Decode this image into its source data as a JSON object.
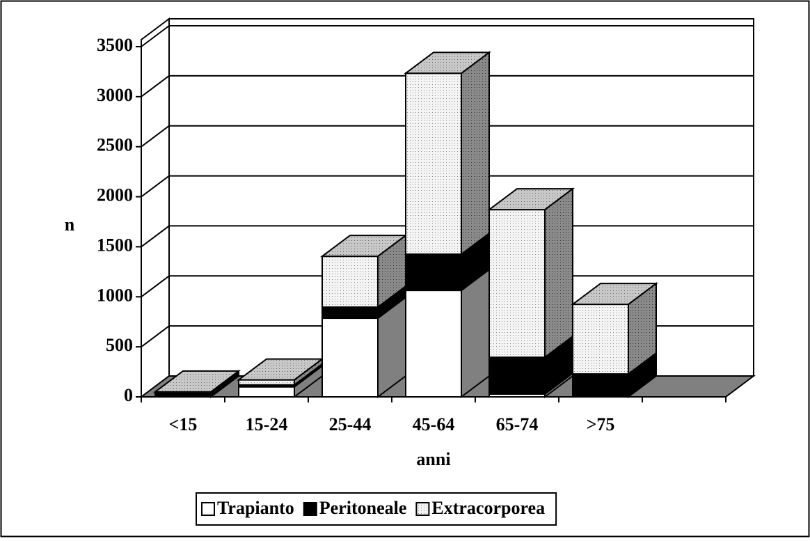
{
  "chart_data": {
    "type": "bar3d-stacked",
    "y_label": "n",
    "x_label": "anni",
    "categories": [
      "<15",
      "15-24",
      "25-44",
      "45-64",
      "65-74",
      ">75"
    ],
    "series": [
      {
        "name": "Trapianto",
        "color": "#ffffff",
        "values": [
          10,
          100,
          786,
          1064,
          28,
          5
        ]
      },
      {
        "name": "Peritoneale",
        "color": "#000000",
        "values": [
          25,
          20,
          111,
          362,
          368,
          224
        ]
      },
      {
        "name": "Extracorporea",
        "color": "#e6e6e6",
        "values": [
          15,
          50,
          508,
          1808,
          1475,
          696
        ]
      }
    ],
    "ylim": [
      0,
      3500
    ],
    "yticks": [
      0,
      500,
      1000,
      1500,
      2000,
      2500,
      3000,
      3500
    ],
    "grid": true
  }
}
